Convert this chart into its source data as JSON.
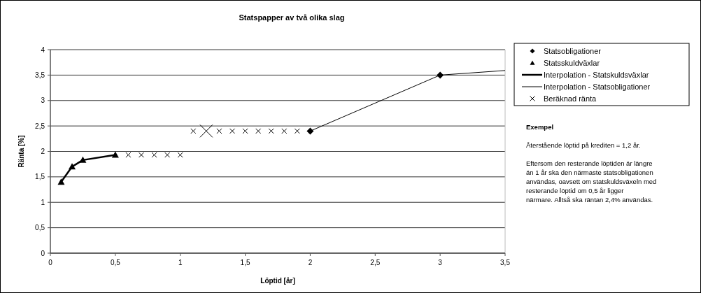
{
  "chart_data": {
    "type": "scatter",
    "title": "Statspapper av två olika slag",
    "xlabel": "Löptid [år]",
    "ylabel": "Ränta [%]",
    "xlim": [
      0,
      3.5
    ],
    "xticks": [
      0,
      {
        "value": 0.5,
        "label": "0,5"
      },
      1,
      {
        "value": 1.5,
        "label": "1,5"
      },
      2,
      {
        "value": 2.5,
        "label": "2,5"
      },
      3,
      {
        "value": 3.5,
        "label": "3,5"
      }
    ],
    "ylim": [
      0,
      4
    ],
    "yticks": [
      0,
      {
        "value": 0.5,
        "label": "0,5"
      },
      1,
      {
        "value": 1.5,
        "label": "1,5"
      },
      2,
      {
        "value": 2.5,
        "label": "2,5"
      },
      3,
      {
        "value": 3.5,
        "label": "3,5"
      },
      4
    ],
    "grid": "y",
    "legend": "right",
    "series": [
      {
        "name": "Statsobligationer",
        "type": "scatter",
        "marker": "diamond",
        "color": "#000000",
        "x": [
          2,
          3
        ],
        "values": [
          2.4,
          3.5
        ]
      },
      {
        "name": "Statsskuldväxlar",
        "type": "scatter",
        "marker": "triangle",
        "color": "#000000",
        "x": [
          0.083,
          0.167,
          0.25,
          0.5
        ],
        "values": [
          1.4,
          1.7,
          1.83,
          1.93
        ]
      },
      {
        "name": "Interpolation - Statskuldsväxlar",
        "type": "line",
        "marker": "none",
        "line_style": "solid",
        "color": "#000000",
        "x": [
          0.083,
          0.167,
          0.25,
          0.5
        ],
        "values": [
          1.4,
          1.7,
          1.83,
          1.93
        ]
      },
      {
        "name": "Interpolation - Statsobligationer",
        "type": "line",
        "marker": "none",
        "line_style": "solid",
        "color": "#000000",
        "x": [
          2,
          3,
          3.5
        ],
        "values": [
          2.4,
          3.5,
          3.59
        ]
      },
      {
        "name": "Beräknad ränta",
        "type": "scatter",
        "marker": "cross",
        "color": "#000000",
        "x": [
          0.6,
          0.7,
          0.8,
          0.9,
          1.0,
          1.1,
          1.3,
          1.4,
          1.5,
          1.6,
          1.7,
          1.8,
          1.9
        ],
        "values": [
          1.93,
          1.93,
          1.93,
          1.93,
          1.93,
          2.4,
          2.4,
          2.4,
          2.4,
          2.4,
          2.4,
          2.4,
          2.4
        ]
      },
      {
        "type": "scatter",
        "marker": "cross",
        "color": "#000000",
        "x": [
          1.2
        ],
        "values": [
          2.4
        ]
      }
    ],
    "annotations": [
      "Exempel",
      "Återstående löptid på krediten = 1,2 år.",
      "Eftersom den resterande löptiden är längre än 1 år ska den närmaste statsobligationen användas, oavsett om statskuldsväxeln med resterande löptid om 0,5 år ligger närmare. Alltså ska räntan 2,4% användas."
    ]
  }
}
